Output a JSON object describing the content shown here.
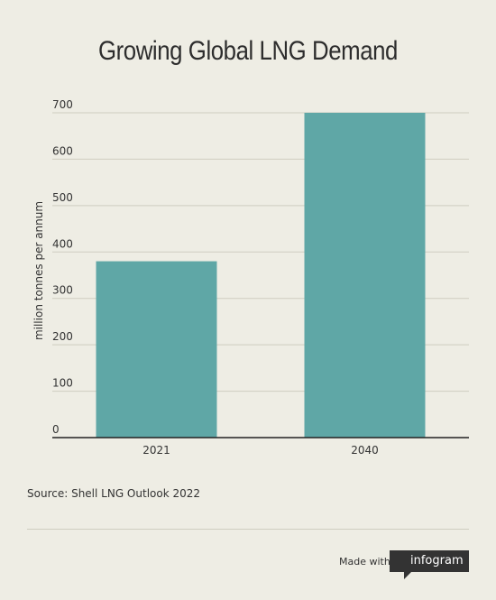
{
  "chart_data": {
    "type": "bar",
    "title": "Growing Global LNG Demand",
    "ylabel": "million tonnes per annum",
    "xlabel": "",
    "categories": [
      "2021",
      "2040"
    ],
    "values": [
      380,
      700
    ],
    "ylim": [
      0,
      700
    ],
    "yticks": [
      "0",
      "100",
      "200",
      "300",
      "400",
      "500",
      "600",
      "700"
    ],
    "grid": true,
    "bar_color": "#5fa7a6"
  },
  "footer": {
    "source": "Source: Shell LNG Outlook 2022",
    "made_with": "Made with",
    "brand": "infogram"
  },
  "colors": {
    "background": "#eeede4",
    "badge": "#333333"
  }
}
